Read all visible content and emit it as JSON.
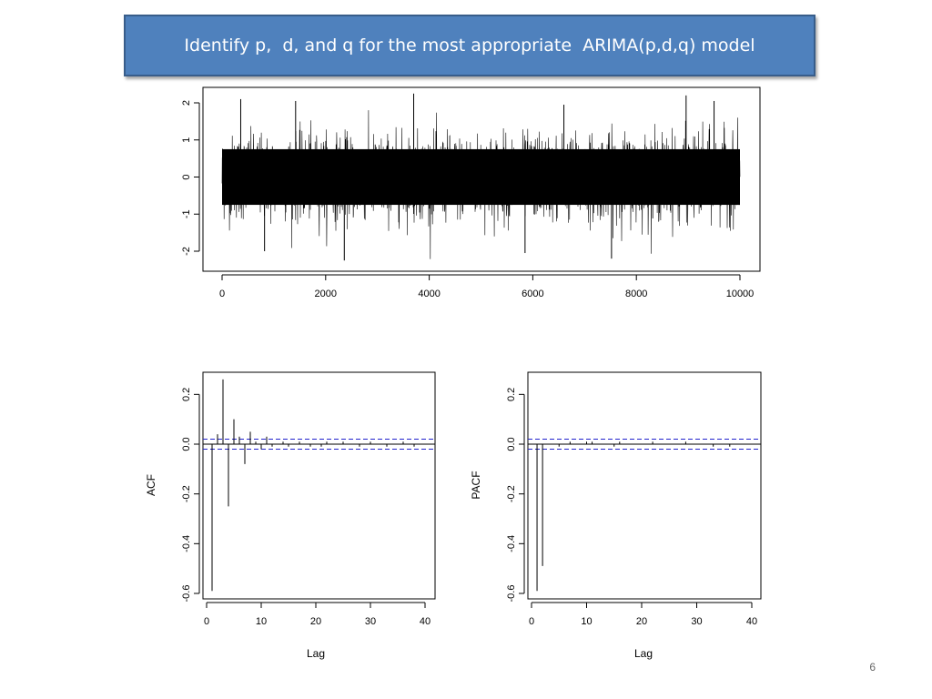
{
  "slide": {
    "title": "Identify p,  d, and q for the most appropriate  ARIMA(p,d,q) model",
    "page_number": "6"
  },
  "chart_data": [
    {
      "type": "line",
      "title": "",
      "xlabel": "",
      "ylabel": "",
      "xlim": [
        0,
        10000
      ],
      "ylim": [
        -2.5,
        2.5
      ],
      "x_ticks": [
        0,
        2000,
        4000,
        6000,
        8000,
        10000
      ],
      "y_ticks": [
        -2,
        -1,
        0,
        1,
        2
      ],
      "n_points": 10000,
      "envelope": {
        "typical_range": [
          -1.2,
          1.2
        ],
        "max": 2.25,
        "min": -2.3
      }
    },
    {
      "type": "bar",
      "title": "",
      "xlabel": "Lag",
      "ylabel": "ACF",
      "xlim": [
        0,
        41
      ],
      "ylim": [
        -0.62,
        0.27
      ],
      "x_ticks": [
        0,
        10,
        20,
        30,
        40
      ],
      "y_ticks": [
        -0.6,
        -0.4,
        -0.2,
        0.0,
        0.2
      ],
      "confidence_band": 0.02,
      "lags": [
        1,
        2,
        3,
        4,
        5,
        6,
        7,
        8,
        9,
        10,
        11,
        12,
        13,
        14,
        15,
        16,
        17,
        18,
        19,
        20,
        21,
        22,
        23,
        24,
        25,
        26,
        27,
        28,
        29,
        30,
        31,
        32,
        33,
        34,
        35,
        36,
        37,
        38,
        39,
        40
      ],
      "values": [
        -0.59,
        0.04,
        0.26,
        -0.25,
        0.1,
        0.03,
        -0.08,
        0.05,
        0.01,
        -0.02,
        0.03,
        -0.01,
        0.0,
        0.01,
        -0.01,
        0.0,
        0.01,
        0.0,
        -0.01,
        0.0,
        -0.01,
        0.01,
        0.0,
        0.0,
        0.01,
        0.0,
        0.0,
        -0.01,
        0.0,
        0.01,
        0.0,
        0.0,
        -0.01,
        0.0,
        0.0,
        0.01,
        0.0,
        -0.01,
        0.0,
        0.0
      ]
    },
    {
      "type": "bar",
      "title": "",
      "xlabel": "Lag",
      "ylabel": "PACF",
      "xlim": [
        0,
        41
      ],
      "ylim": [
        -0.62,
        0.27
      ],
      "x_ticks": [
        0,
        10,
        20,
        30,
        40
      ],
      "y_ticks": [
        -0.6,
        -0.4,
        -0.2,
        0.0,
        0.2
      ],
      "confidence_band": 0.02,
      "lags": [
        1,
        2,
        3,
        4,
        5,
        6,
        7,
        8,
        9,
        10,
        11,
        12,
        13,
        14,
        15,
        16,
        17,
        18,
        19,
        20,
        21,
        22,
        23,
        24,
        25,
        26,
        27,
        28,
        29,
        30,
        31,
        32,
        33,
        34,
        35,
        36,
        37,
        38,
        39,
        40
      ],
      "values": [
        -0.59,
        -0.49,
        0.0,
        0.0,
        -0.01,
        0.0,
        0.01,
        0.0,
        0.0,
        0.01,
        0.01,
        0.0,
        0.0,
        0.0,
        -0.01,
        0.01,
        0.0,
        0.0,
        0.0,
        0.0,
        0.0,
        0.01,
        0.0,
        0.0,
        0.0,
        0.0,
        0.0,
        0.01,
        0.0,
        0.0,
        0.0,
        0.0,
        -0.01,
        0.0,
        0.0,
        -0.01,
        0.0,
        0.0,
        0.0,
        0.0
      ]
    }
  ]
}
